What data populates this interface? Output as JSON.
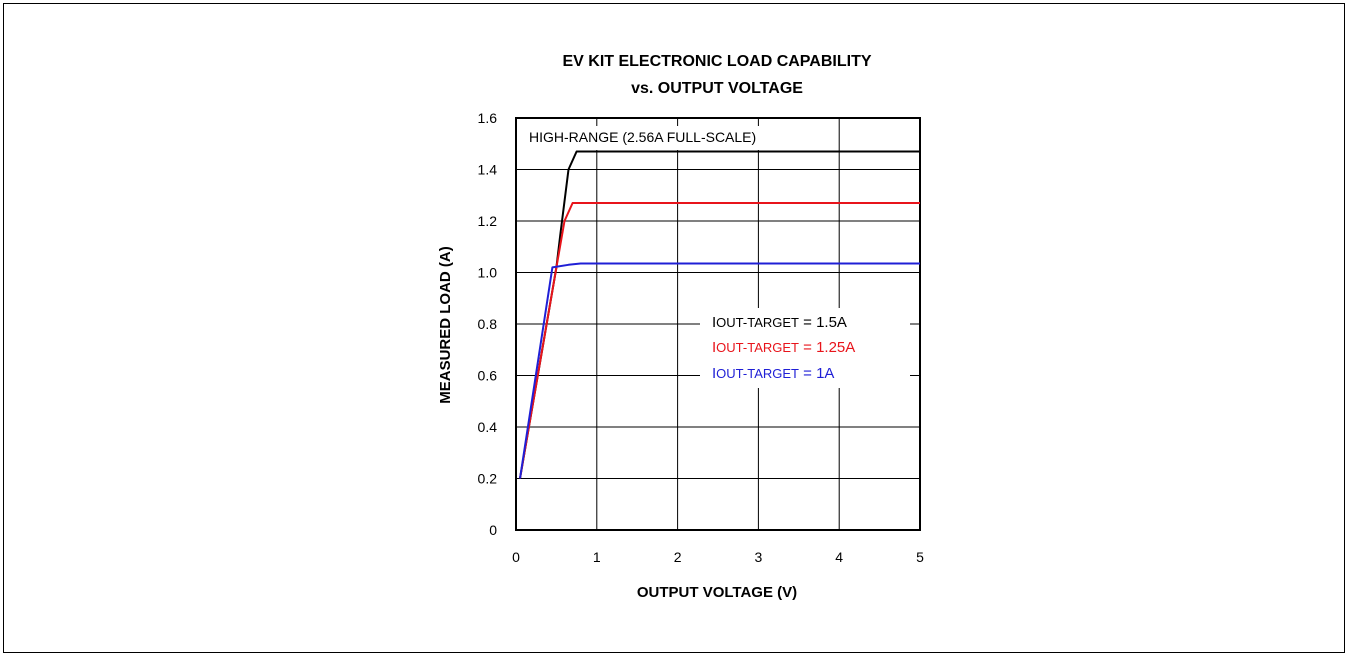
{
  "chart_data": {
    "type": "line",
    "title": [
      "EV KIT ELECTRONIC LOAD CAPABILITY",
      "vs. OUTPUT VOLTAGE"
    ],
    "xlabel": "OUTPUT VOLTAGE (V)",
    "ylabel": "MEASURED LOAD (A)",
    "xlim": [
      0,
      5
    ],
    "ylim": [
      0,
      1.6
    ],
    "xticks": [
      "0",
      "1",
      "2",
      "3",
      "4",
      "5"
    ],
    "yticks": [
      "0",
      "0.2",
      "0.4",
      "0.6",
      "0.8",
      "1.0",
      "1.2",
      "1.4",
      "1.6"
    ],
    "grid": true,
    "annotation": "HIGH-RANGE (2.56A FULL-SCALE)",
    "series": [
      {
        "name": "IOUT-TARGET = 1.5A",
        "color": "#000000",
        "x": [
          0.05,
          0.5,
          0.55,
          0.65,
          0.75,
          5
        ],
        "y": [
          0.2,
          1.02,
          1.15,
          1.4,
          1.47,
          1.47
        ]
      },
      {
        "name": "IOUT-TARGET = 1.25A",
        "color": "#e8141b",
        "x": [
          0.05,
          0.5,
          0.6,
          0.7,
          5
        ],
        "y": [
          0.2,
          1.02,
          1.2,
          1.27,
          1.27
        ]
      },
      {
        "name": "IOUT-TARGET = 1A",
        "color": "#1f1fd6",
        "x": [
          0.05,
          0.45,
          0.65,
          0.8,
          5
        ],
        "y": [
          0.2,
          1.02,
          1.03,
          1.035,
          1.035
        ]
      }
    ],
    "legend": [
      {
        "prefix": "I",
        "sub": "OUT-TARGET",
        "suffix": " = 1.5A",
        "color": "#000000"
      },
      {
        "prefix": "I",
        "sub": "OUT-TARGET",
        "suffix": " = 1.25A",
        "color": "#e8141b"
      },
      {
        "prefix": "I",
        "sub": "OUT-TARGET",
        "suffix": " = 1A",
        "color": "#1f1fd6"
      }
    ]
  }
}
